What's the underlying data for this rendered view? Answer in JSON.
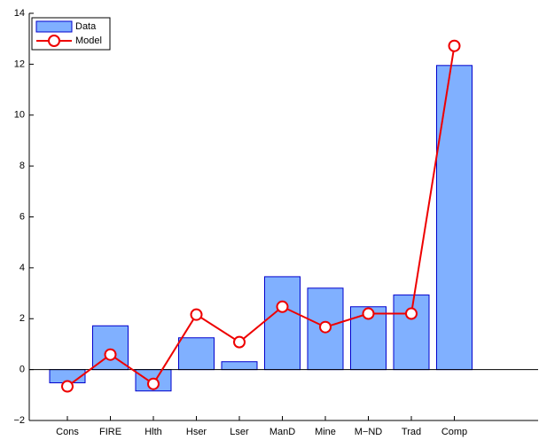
{
  "chart_data": {
    "type": "bar",
    "categories": [
      "Cons",
      "FIRE",
      "Hlth",
      "Hser",
      "Lser",
      "ManD",
      "Mine",
      "M−ND",
      "Trad",
      "Comp"
    ],
    "series": [
      {
        "name": "Data",
        "type": "bar",
        "color": "#80b0ff",
        "values": [
          -0.52,
          1.72,
          -0.84,
          1.25,
          0.31,
          3.65,
          3.2,
          2.47,
          2.93,
          11.95
        ]
      },
      {
        "name": "Model",
        "type": "line",
        "color": "#ee0000",
        "values": [
          -0.66,
          0.59,
          -0.56,
          2.16,
          1.08,
          2.47,
          1.67,
          2.2,
          2.2,
          12.72
        ]
      }
    ],
    "ylim": [
      -2,
      14
    ],
    "yticks": [
      {
        "value": -2,
        "label": "−2"
      },
      0,
      2,
      4,
      6,
      8,
      10,
      12,
      14
    ],
    "grid": false,
    "legend": "upper-left"
  }
}
